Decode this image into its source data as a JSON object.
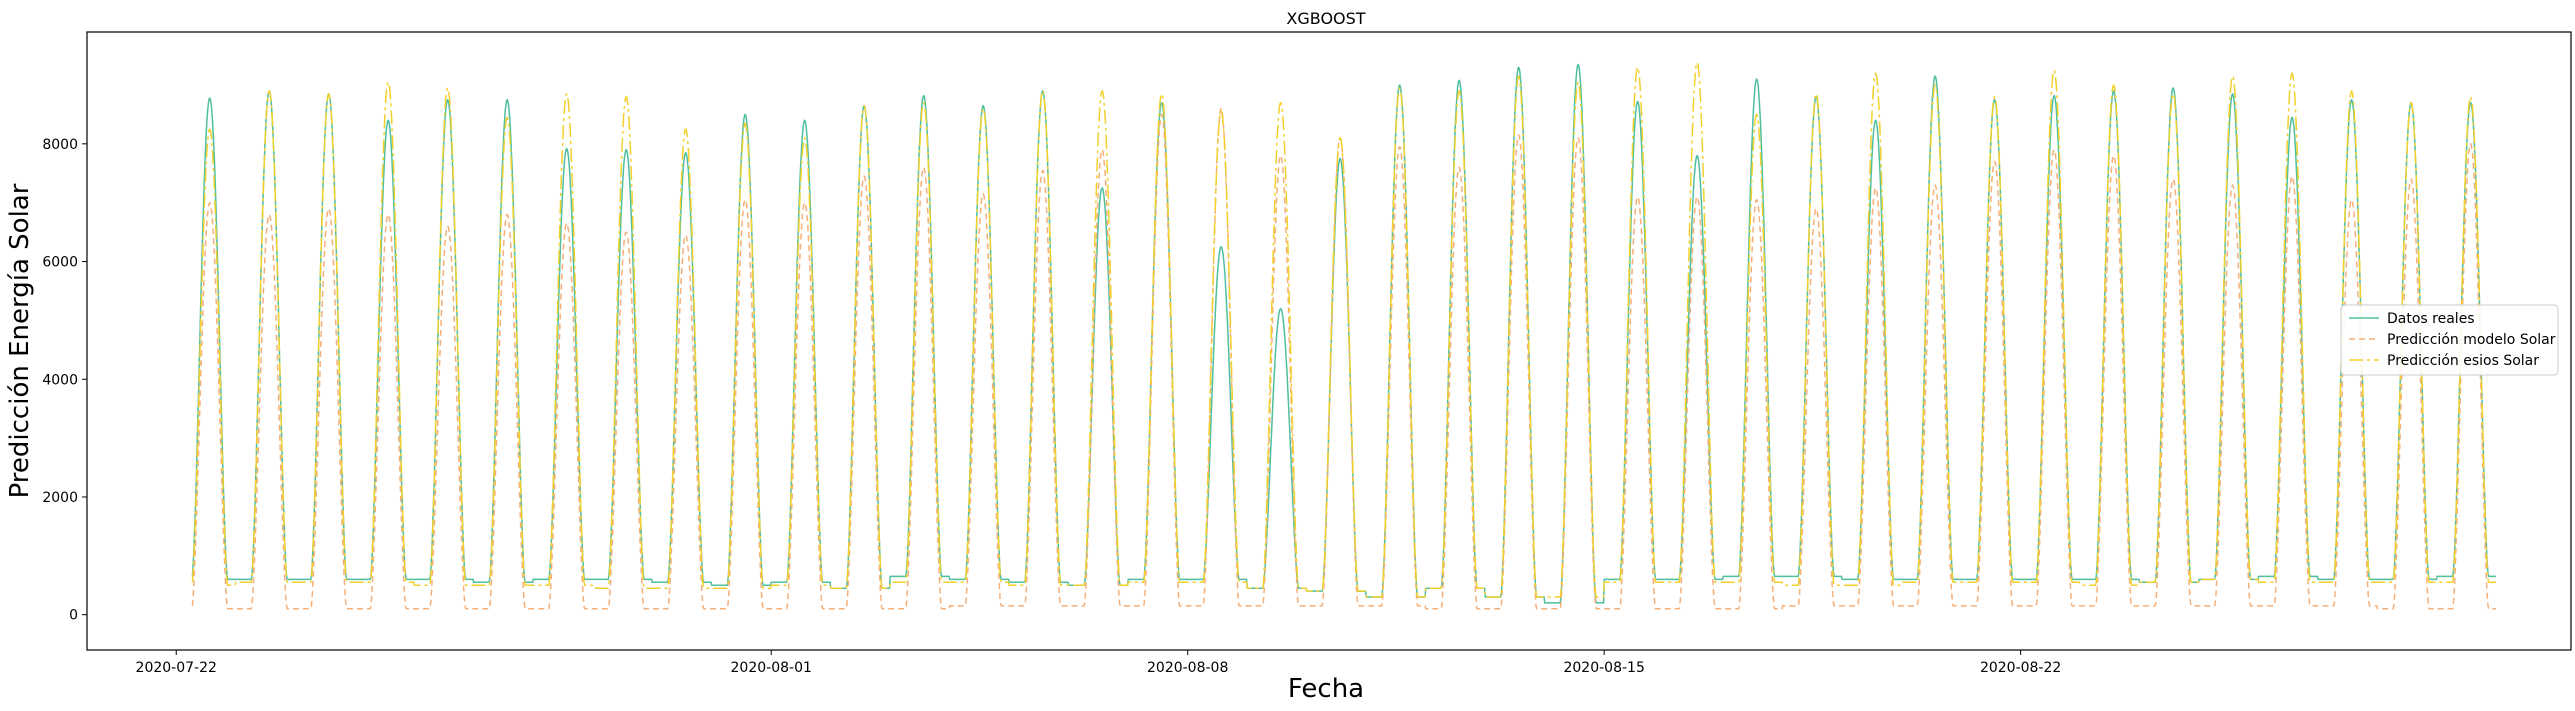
{
  "chart_data": {
    "type": "line",
    "title": "XGBOOST",
    "xlabel": "Fecha",
    "ylabel": "Predicción Energía Solar",
    "xlim": [
      "2020-07-20T12:00",
      "2020-08-31T06:00"
    ],
    "ylim": [
      -600,
      9900
    ],
    "x_ticks": [
      "2020-07-22",
      "2020-08-01",
      "2020-08-08",
      "2020-08-15",
      "2020-08-22"
    ],
    "y_ticks": [
      0,
      2000,
      4000,
      6000,
      8000
    ],
    "grid": false,
    "legend_position": "center-right",
    "start_date": "2020-07-22",
    "days": 39,
    "series": [
      {
        "name": "Datos reales",
        "color": "#4fbfa0",
        "dash": "",
        "night": [
          600,
          600,
          600,
          600,
          600,
          550,
          600,
          600,
          550,
          500,
          550,
          450,
          650,
          600,
          550,
          500,
          600,
          600,
          450,
          400,
          300,
          450,
          300,
          200,
          600,
          600,
          650,
          650,
          600,
          600,
          600,
          600,
          600,
          550,
          600,
          650,
          600,
          600,
          650
        ],
        "peaks": [
          8780,
          8900,
          8850,
          8400,
          8750,
          8750,
          7920,
          7900,
          7850,
          8500,
          8400,
          8650,
          8820,
          8650,
          8900,
          7250,
          8700,
          6250,
          5200,
          7750,
          9000,
          9080,
          9300,
          9350,
          8720,
          7800,
          9100,
          8800,
          8400,
          9150,
          8750,
          8820,
          8900,
          8950,
          8850,
          8450,
          8750,
          8700,
          8700
        ]
      },
      {
        "name": "Predicción modelo Solar",
        "color": "#f5b07a",
        "dash": "6,4",
        "night": [
          100,
          100,
          100,
          100,
          100,
          100,
          100,
          100,
          100,
          100,
          100,
          100,
          100,
          150,
          150,
          150,
          150,
          150,
          150,
          150,
          150,
          100,
          100,
          100,
          100,
          100,
          100,
          150,
          150,
          150,
          150,
          150,
          150,
          150,
          150,
          150,
          150,
          100,
          100
        ],
        "peaks": [
          7000,
          6800,
          6900,
          6800,
          6600,
          6800,
          6650,
          6500,
          6450,
          7050,
          7000,
          7450,
          7600,
          7150,
          7550,
          7900,
          8500,
          8600,
          7800,
          8100,
          7950,
          7600,
          8150,
          8100,
          7100,
          7100,
          7050,
          6900,
          7250,
          7300,
          7700,
          7900,
          7800,
          7400,
          7300,
          7450,
          7050,
          7400,
          8000
        ]
      },
      {
        "name": "Predicción esios Solar",
        "color": "#f2d12e",
        "dash": "14,4,3,4",
        "night": [
          500,
          550,
          550,
          550,
          500,
          500,
          500,
          450,
          450,
          450,
          500,
          450,
          550,
          550,
          500,
          500,
          550,
          550,
          450,
          400,
          300,
          450,
          300,
          300,
          550,
          550,
          550,
          500,
          500,
          550,
          550,
          550,
          500,
          550,
          600,
          550,
          550,
          550,
          550
        ],
        "peaks": [
          8250,
          8900,
          8850,
          9050,
          8950,
          8450,
          8850,
          8800,
          8250,
          8350,
          8100,
          8650,
          8700,
          8600,
          8900,
          8900,
          8850,
          8550,
          8700,
          8100,
          8950,
          8900,
          9150,
          9050,
          9300,
          9380,
          8500,
          8850,
          9200,
          9000,
          8800,
          9250,
          9000,
          8850,
          9150,
          9200,
          8900,
          8700,
          8800
        ]
      }
    ]
  }
}
